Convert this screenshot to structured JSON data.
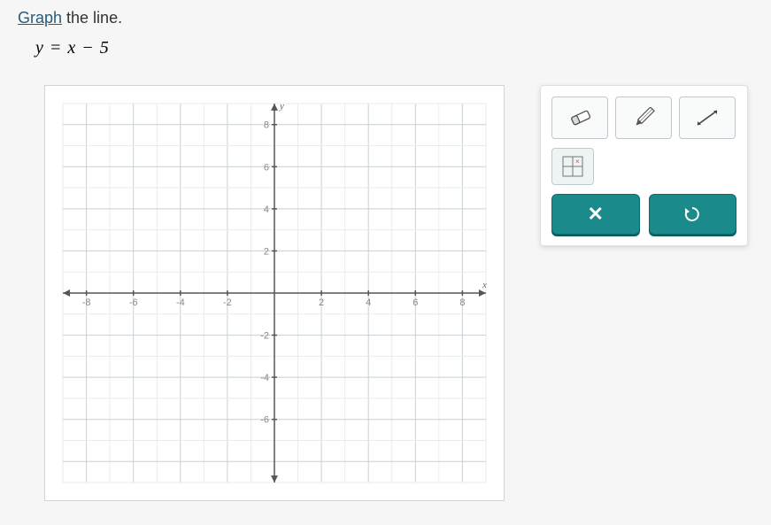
{
  "instruction": {
    "link_text": "Graph",
    "rest": " the line."
  },
  "equation": "y = x − 5",
  "graph": {
    "xlim": [
      -9,
      9
    ],
    "ylim": [
      -9,
      9
    ],
    "major_step": 2,
    "minor_step": 1,
    "x_tick_labels": [
      "-8",
      "-6",
      "-4",
      "-2",
      "2",
      "4",
      "6",
      "8"
    ],
    "x_tick_values": [
      -8,
      -6,
      -4,
      -2,
      2,
      4,
      6,
      8
    ],
    "y_tick_labels": [
      "8",
      "6",
      "4",
      "2",
      "-2",
      "-4",
      "-6"
    ],
    "y_tick_values": [
      8,
      6,
      4,
      2,
      -2,
      -4,
      -6
    ],
    "x_axis_label": "x",
    "y_axis_label": "y",
    "grid_minor_color": "#e8ecee",
    "grid_major_color": "#c8d0d4",
    "axis_color": "#555555",
    "background_color": "#ffffff"
  },
  "tools": {
    "eraser": "eraser",
    "pencil": "pencil",
    "line": "line",
    "point_grid": "point-grid"
  },
  "actions": {
    "clear": "×",
    "reset": "↺"
  },
  "colors": {
    "teal": "#1a8a8a",
    "panel_bg": "#ffffff",
    "page_bg": "#f5f6f5"
  }
}
